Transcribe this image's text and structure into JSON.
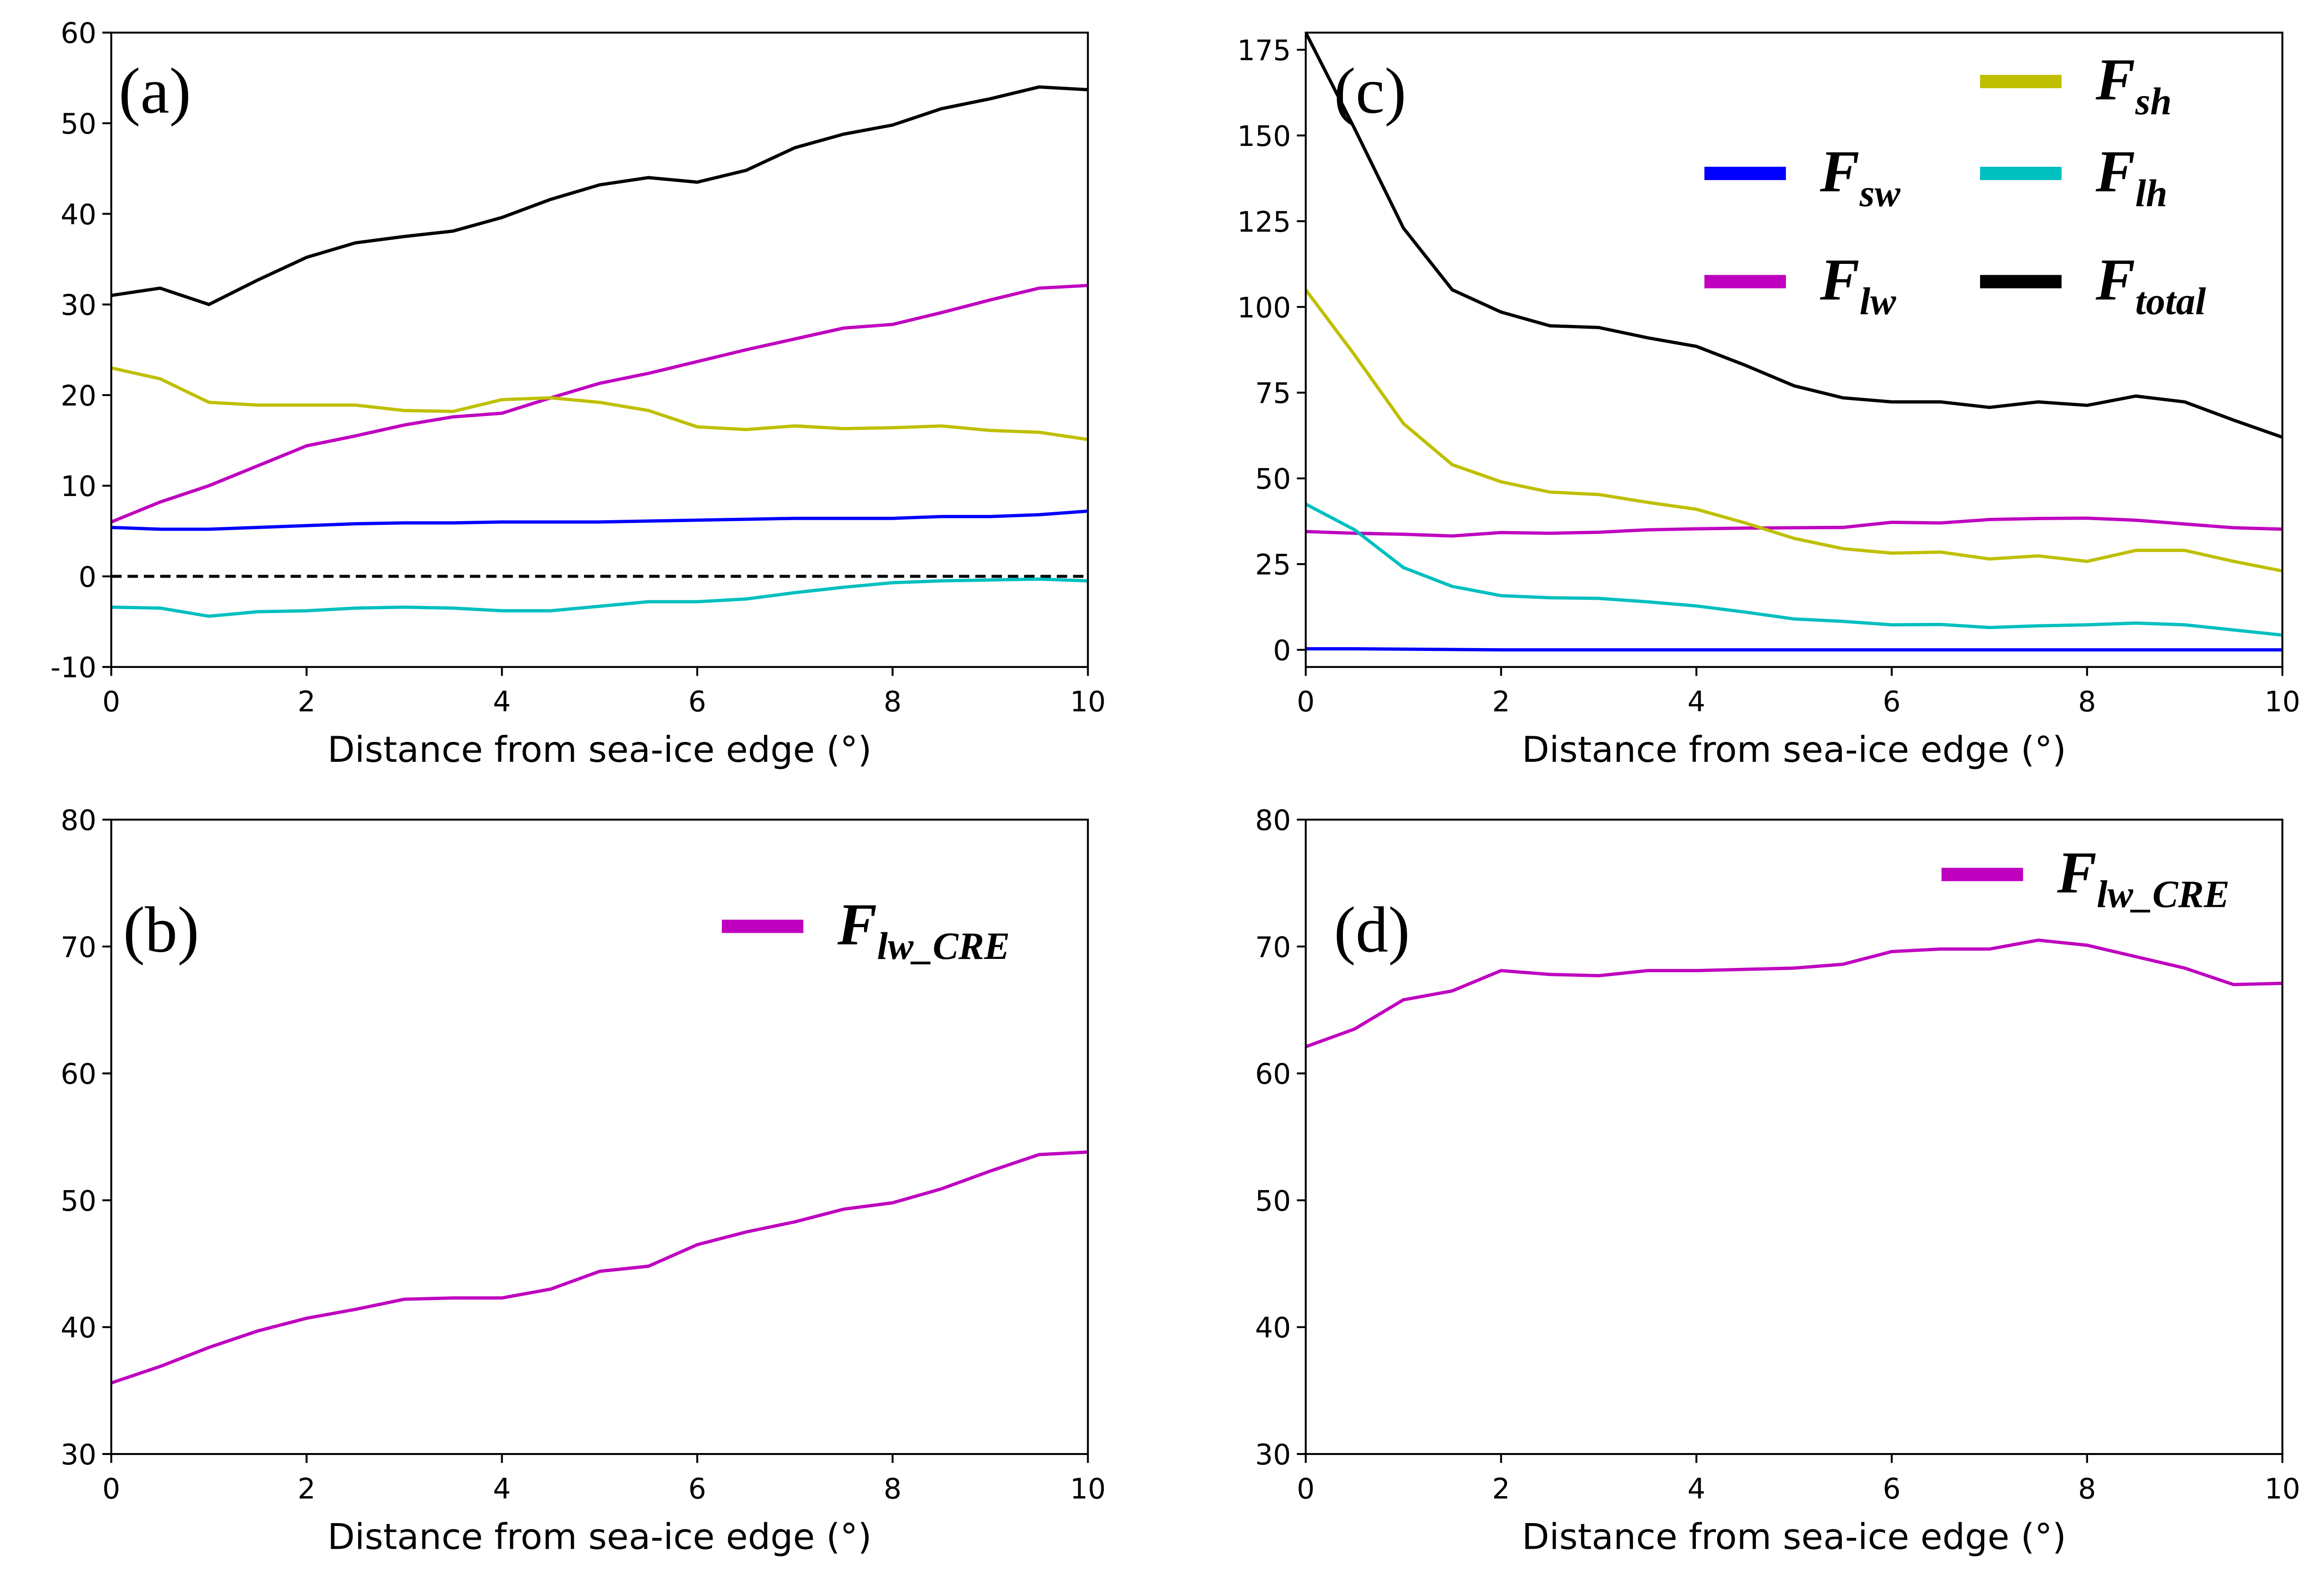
{
  "chart_data": [
    {
      "type": "line",
      "panel_label": "(a)",
      "xlabel": "Distance from sea-ice edge (°)",
      "x": [
        0,
        0.5,
        1,
        1.5,
        2,
        2.5,
        3,
        3.5,
        4,
        4.5,
        5,
        5.5,
        6,
        6.5,
        7,
        7.5,
        8,
        8.5,
        9,
        9.5,
        10
      ],
      "xlim": [
        0,
        10
      ],
      "xticks": [
        0,
        2,
        4,
        6,
        8,
        10
      ],
      "ylim": [
        -10,
        60
      ],
      "yticks": [
        -10,
        0,
        10,
        20,
        30,
        40,
        50,
        60
      ],
      "hline": 0,
      "series": [
        {
          "color": "#000000",
          "values": [
            31,
            31.8,
            30,
            32.7,
            35.2,
            36.8,
            37.5,
            38.1,
            39.6,
            41.6,
            43.2,
            44,
            43.5,
            44.8,
            47.3,
            48.8,
            49.8,
            51.6,
            52.7,
            54,
            53.7
          ]
        },
        {
          "color": "#bf00bf",
          "values": [
            6,
            8.2,
            10,
            12.2,
            14.4,
            15.5,
            16.7,
            17.6,
            18,
            19.7,
            21.3,
            22.4,
            23.7,
            25,
            26.2,
            27.4,
            27.8,
            29.1,
            30.5,
            31.8,
            32.1
          ]
        },
        {
          "color": "#bfbf00",
          "values": [
            23,
            21.8,
            19.2,
            18.9,
            18.9,
            18.9,
            18.3,
            18.2,
            19.5,
            19.7,
            19.2,
            18.3,
            16.5,
            16.2,
            16.6,
            16.3,
            16.4,
            16.6,
            16.1,
            15.9,
            15.1
          ]
        },
        {
          "color": "#0000ff",
          "values": [
            5.4,
            5.2,
            5.2,
            5.4,
            5.6,
            5.8,
            5.9,
            5.9,
            6,
            6,
            6,
            6.1,
            6.2,
            6.3,
            6.4,
            6.4,
            6.4,
            6.6,
            6.6,
            6.8,
            7.2
          ]
        },
        {
          "color": "#00bfbf",
          "values": [
            -3.4,
            -3.5,
            -4.4,
            -3.9,
            -3.8,
            -3.5,
            -3.4,
            -3.5,
            -3.8,
            -3.8,
            -3.3,
            -2.8,
            -2.8,
            -2.5,
            -1.8,
            -1.2,
            -0.7,
            -0.5,
            -0.4,
            -0.3,
            -0.5
          ]
        }
      ]
    },
    {
      "type": "line",
      "panel_label": "(b)",
      "xlabel": "Distance from sea-ice edge (°)",
      "x": [
        0,
        0.5,
        1,
        1.5,
        2,
        2.5,
        3,
        3.5,
        4,
        4.5,
        5,
        5.5,
        6,
        6.5,
        7,
        7.5,
        8,
        8.5,
        9,
        9.5,
        10
      ],
      "xlim": [
        0,
        10
      ],
      "xticks": [
        0,
        2,
        4,
        6,
        8,
        10
      ],
      "ylim": [
        30,
        80
      ],
      "yticks": [
        30,
        40,
        50,
        60,
        70,
        80
      ],
      "series": [
        {
          "name": "F_lw_CRE",
          "color": "#bf00bf",
          "values": [
            35.6,
            36.9,
            38.4,
            39.7,
            40.7,
            41.4,
            42.2,
            42.3,
            42.3,
            43,
            44.4,
            44.8,
            46.5,
            47.5,
            48.3,
            49.3,
            49.8,
            50.9,
            52.3,
            53.6,
            53.8
          ]
        }
      ]
    },
    {
      "type": "line",
      "panel_label": "(c)",
      "xlabel": "Distance from sea-ice edge (°)",
      "x": [
        0,
        0.5,
        1,
        1.5,
        2,
        2.5,
        3,
        3.5,
        4,
        4.5,
        5,
        5.5,
        6,
        6.5,
        7,
        7.5,
        8,
        8.5,
        9,
        9.5,
        10
      ],
      "xlim": [
        0,
        10
      ],
      "xticks": [
        0,
        2,
        4,
        6,
        8,
        10
      ],
      "ylim": [
        -5,
        180
      ],
      "yticks": [
        0,
        25,
        50,
        75,
        100,
        125,
        150,
        175
      ],
      "series": [
        {
          "name": "F_sw",
          "color": "#0000ff",
          "values": [
            0.3,
            0.3,
            0.2,
            0.1,
            0,
            0,
            0,
            0,
            0,
            0,
            0,
            0,
            0,
            0,
            0,
            0,
            0,
            0,
            0,
            0,
            0
          ]
        },
        {
          "name": "F_lw",
          "color": "#bf00bf",
          "values": [
            34.5,
            34,
            33.7,
            33.2,
            34.2,
            34,
            34.3,
            35,
            35.3,
            35.5,
            35.6,
            35.7,
            37.2,
            37,
            38,
            38.3,
            38.4,
            37.8,
            36.7,
            35.6,
            35.2
          ]
        },
        {
          "name": "F_sh",
          "color": "#bfbf00",
          "values": [
            105,
            86,
            66,
            54,
            49,
            46,
            45.3,
            43,
            41,
            37,
            32.5,
            29.5,
            28.2,
            28.5,
            26.5,
            27.4,
            25.8,
            29,
            29,
            25.8,
            23
          ]
        },
        {
          "name": "F_lh",
          "color": "#00bfbf",
          "values": [
            42.5,
            35,
            24,
            18.5,
            15.8,
            15.2,
            15,
            14,
            12.8,
            11,
            9,
            8.3,
            7.3,
            7.4,
            6.5,
            7,
            7.3,
            7.8,
            7.3,
            5.8,
            4.3
          ]
        },
        {
          "name": "F_total",
          "color": "#000000",
          "values": [
            180,
            152,
            123,
            105,
            98.5,
            94.5,
            94,
            91,
            88.5,
            83,
            77,
            73.5,
            72.3,
            72.3,
            70.7,
            72.3,
            71.3,
            74,
            72.3,
            67,
            62
          ]
        }
      ]
    },
    {
      "type": "line",
      "panel_label": "(d)",
      "xlabel": "Distance from sea-ice edge (°)",
      "x": [
        0,
        0.5,
        1,
        1.5,
        2,
        2.5,
        3,
        3.5,
        4,
        4.5,
        5,
        5.5,
        6,
        6.5,
        7,
        7.5,
        8,
        8.5,
        9,
        9.5,
        10
      ],
      "xlim": [
        0,
        10
      ],
      "xticks": [
        0,
        2,
        4,
        6,
        8,
        10
      ],
      "ylim": [
        30,
        80
      ],
      "yticks": [
        30,
        40,
        50,
        60,
        70,
        80
      ],
      "series": [
        {
          "name": "F_lw_CRE",
          "color": "#bf00bf",
          "values": [
            62.1,
            63.5,
            65.8,
            66.5,
            68.1,
            67.8,
            67.7,
            68.1,
            68.1,
            68.2,
            68.3,
            68.6,
            69.6,
            69.8,
            69.8,
            70.5,
            70.1,
            69.2,
            68.3,
            67,
            67.1
          ]
        }
      ]
    }
  ]
}
